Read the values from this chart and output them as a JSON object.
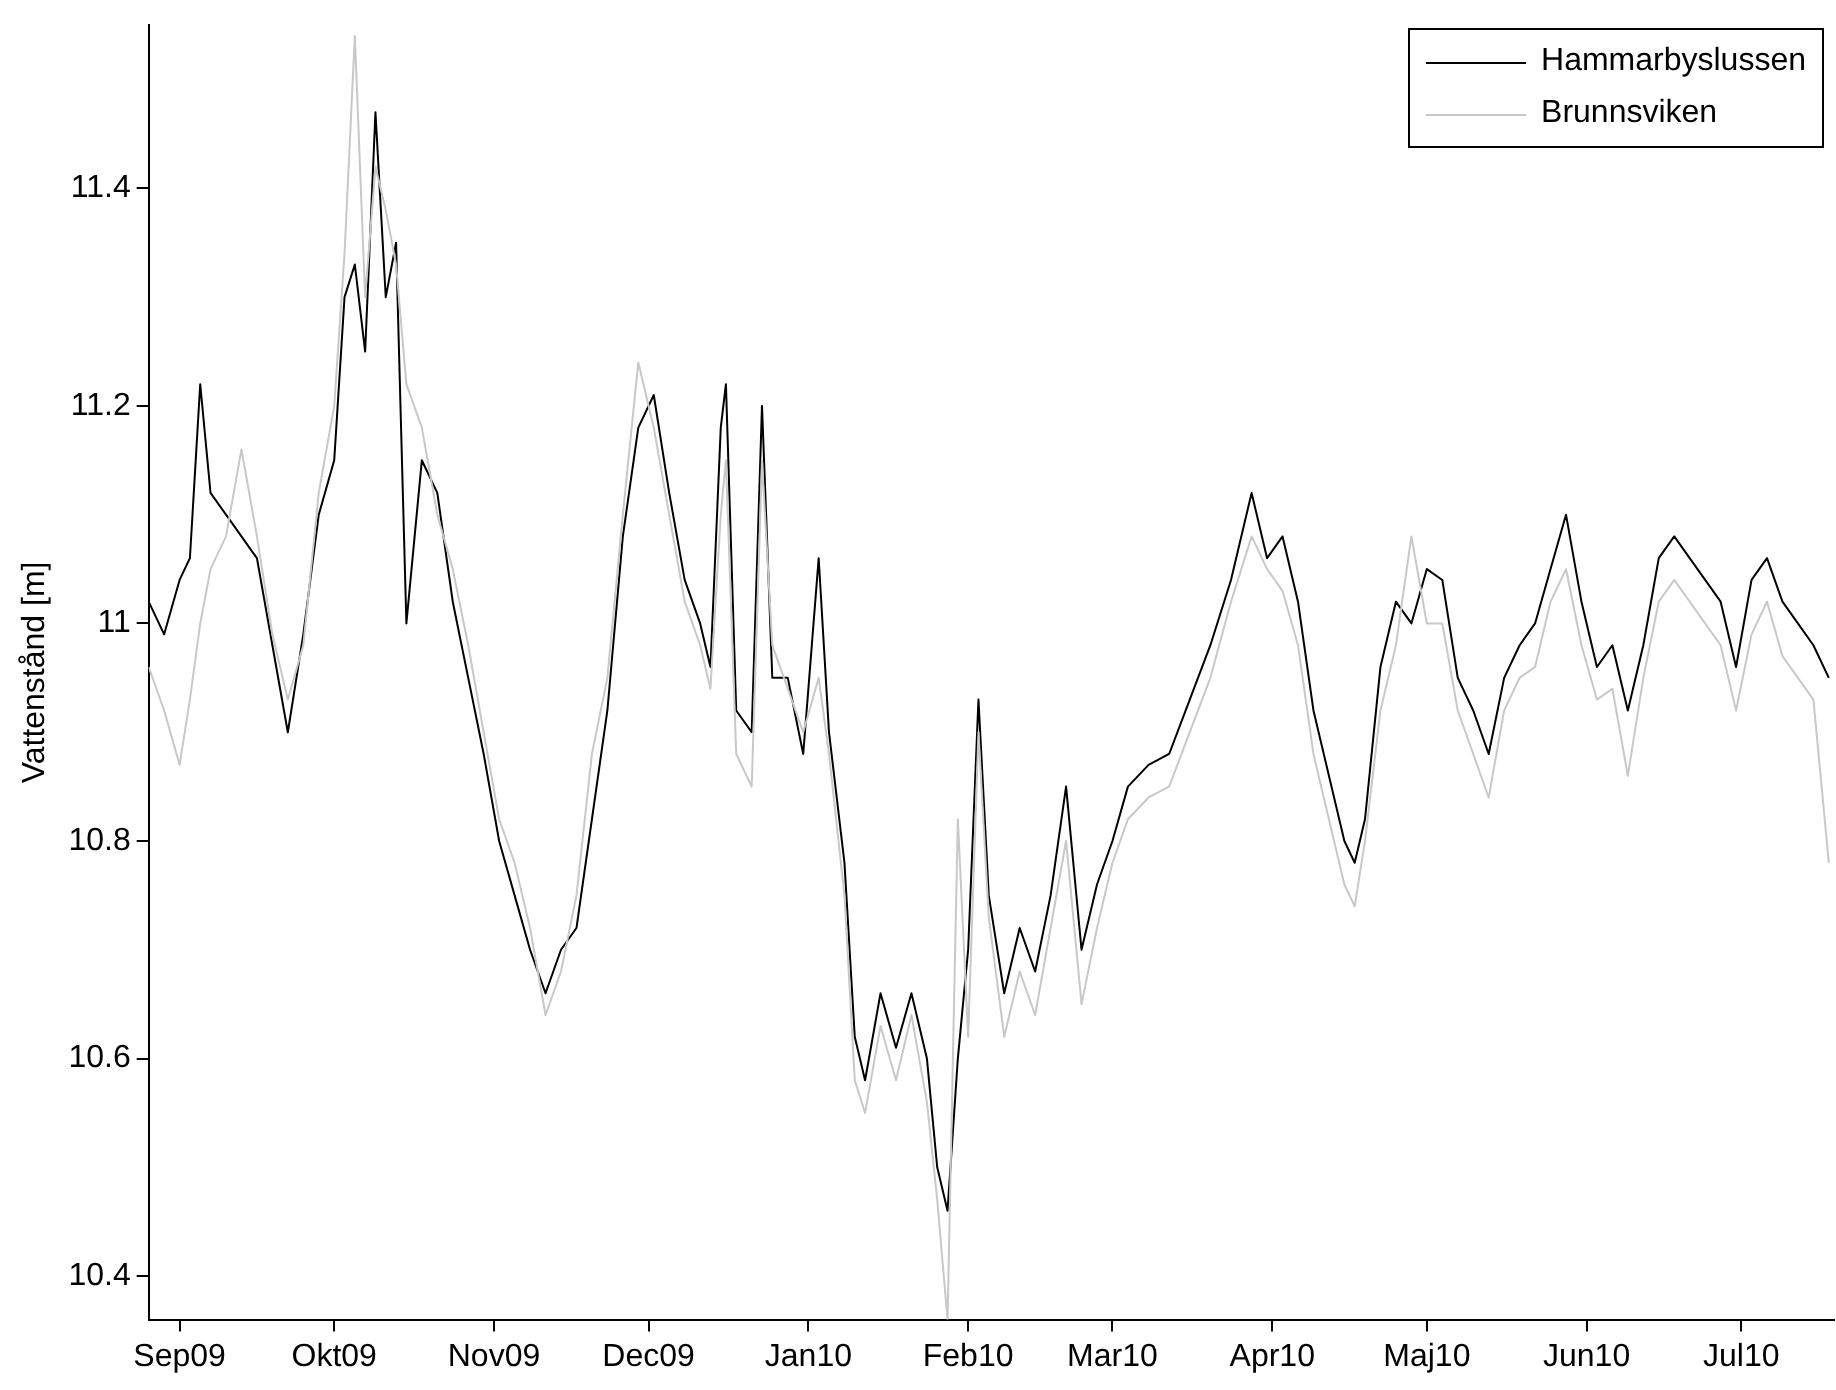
{
  "chart_data": {
    "type": "line",
    "ylabel": "Vattenstånd [m]",
    "xlim": [
      "2009-08-26",
      "2010-07-19"
    ],
    "xticks": [
      {
        "value": "2009-09-01",
        "label": "Sep09"
      },
      {
        "value": "2009-10-01",
        "label": "Okt09"
      },
      {
        "value": "2009-11-01",
        "label": "Nov09"
      },
      {
        "value": "2009-12-01",
        "label": "Dec09"
      },
      {
        "value": "2010-01-01",
        "label": "Jan10"
      },
      {
        "value": "2010-02-01",
        "label": "Feb10"
      },
      {
        "value": "2010-03-01",
        "label": "Mar10"
      },
      {
        "value": "2010-04-01",
        "label": "Apr10"
      },
      {
        "value": "2010-05-01",
        "label": "Maj10"
      },
      {
        "value": "2010-06-01",
        "label": "Jun10"
      },
      {
        "value": "2010-07-01",
        "label": "Jul10"
      }
    ],
    "ylim": [
      10.36,
      11.55
    ],
    "yticks": [
      10.4,
      10.6,
      10.8,
      11,
      11.2,
      11.4
    ],
    "grid": false,
    "legend": "top right",
    "marker": "none",
    "line_style": "solid",
    "x": [
      "2009-08-26",
      "2009-08-29",
      "2009-09-01",
      "2009-09-03",
      "2009-09-05",
      "2009-09-07",
      "2009-09-10",
      "2009-09-13",
      "2009-09-16",
      "2009-09-19",
      "2009-09-22",
      "2009-09-25",
      "2009-09-28",
      "2009-10-01",
      "2009-10-03",
      "2009-10-05",
      "2009-10-07",
      "2009-10-09",
      "2009-10-11",
      "2009-10-13",
      "2009-10-15",
      "2009-10-18",
      "2009-10-21",
      "2009-10-24",
      "2009-10-27",
      "2009-10-30",
      "2009-11-02",
      "2009-11-05",
      "2009-11-08",
      "2009-11-11",
      "2009-11-14",
      "2009-11-17",
      "2009-11-20",
      "2009-11-23",
      "2009-11-26",
      "2009-11-29",
      "2009-12-02",
      "2009-12-05",
      "2009-12-08",
      "2009-12-11",
      "2009-12-13",
      "2009-12-15",
      "2009-12-16",
      "2009-12-18",
      "2009-12-21",
      "2009-12-23",
      "2009-12-25",
      "2009-12-28",
      "2009-12-31",
      "2010-01-03",
      "2010-01-05",
      "2010-01-08",
      "2010-01-10",
      "2010-01-12",
      "2010-01-15",
      "2010-01-18",
      "2010-01-21",
      "2010-01-24",
      "2010-01-26",
      "2010-01-28",
      "2010-01-30",
      "2010-02-01",
      "2010-02-03",
      "2010-02-05",
      "2010-02-08",
      "2010-02-11",
      "2010-02-14",
      "2010-02-17",
      "2010-02-20",
      "2010-02-23",
      "2010-02-26",
      "2010-03-01",
      "2010-03-04",
      "2010-03-08",
      "2010-03-12",
      "2010-03-16",
      "2010-03-20",
      "2010-03-24",
      "2010-03-28",
      "2010-03-31",
      "2010-04-03",
      "2010-04-06",
      "2010-04-09",
      "2010-04-12",
      "2010-04-15",
      "2010-04-17",
      "2010-04-19",
      "2010-04-22",
      "2010-04-25",
      "2010-04-28",
      "2010-05-01",
      "2010-05-04",
      "2010-05-07",
      "2010-05-10",
      "2010-05-13",
      "2010-05-16",
      "2010-05-19",
      "2010-05-22",
      "2010-05-25",
      "2010-05-28",
      "2010-05-31",
      "2010-06-03",
      "2010-06-06",
      "2010-06-09",
      "2010-06-12",
      "2010-06-15",
      "2010-06-18",
      "2010-06-21",
      "2010-06-24",
      "2010-06-27",
      "2010-06-30",
      "2010-07-03",
      "2010-07-06",
      "2010-07-09",
      "2010-07-12",
      "2010-07-15",
      "2010-07-18"
    ],
    "series": [
      {
        "name": "Hammarbyslussen",
        "color": "#000000",
        "values": [
          11.02,
          10.99,
          11.04,
          11.06,
          11.22,
          11.12,
          11.1,
          11.08,
          11.06,
          10.98,
          10.9,
          10.99,
          11.1,
          11.15,
          11.3,
          11.33,
          11.25,
          11.47,
          11.3,
          11.35,
          11.0,
          11.15,
          11.12,
          11.02,
          10.95,
          10.88,
          10.8,
          10.75,
          10.7,
          10.66,
          10.7,
          10.72,
          10.82,
          10.92,
          11.08,
          11.18,
          11.21,
          11.12,
          11.04,
          11.0,
          10.96,
          11.18,
          11.22,
          10.92,
          10.9,
          11.2,
          10.95,
          10.95,
          10.88,
          11.06,
          10.9,
          10.78,
          10.62,
          10.58,
          10.66,
          10.61,
          10.66,
          10.6,
          10.5,
          10.46,
          10.6,
          10.7,
          10.93,
          10.75,
          10.66,
          10.72,
          10.68,
          10.75,
          10.85,
          10.7,
          10.76,
          10.8,
          10.85,
          10.87,
          10.88,
          10.93,
          10.98,
          11.04,
          11.12,
          11.06,
          11.08,
          11.02,
          10.92,
          10.86,
          10.8,
          10.78,
          10.82,
          10.96,
          11.02,
          11.0,
          11.05,
          11.04,
          10.95,
          10.92,
          10.88,
          10.95,
          10.98,
          11.0,
          11.05,
          11.1,
          11.02,
          10.96,
          10.98,
          10.92,
          10.98,
          11.06,
          11.08,
          11.06,
          11.04,
          11.02,
          10.96,
          11.04,
          11.06,
          11.02,
          11.0,
          10.98,
          10.95
        ]
      },
      {
        "name": "Brunnsviken",
        "color": "#c8c8c8",
        "values": [
          10.96,
          10.92,
          10.87,
          10.93,
          11.0,
          11.05,
          11.08,
          11.16,
          11.08,
          10.99,
          10.93,
          10.98,
          11.12,
          11.2,
          11.34,
          11.54,
          11.3,
          11.42,
          11.38,
          11.33,
          11.22,
          11.18,
          11.1,
          11.05,
          10.98,
          10.9,
          10.82,
          10.78,
          10.72,
          10.64,
          10.68,
          10.75,
          10.88,
          10.95,
          11.1,
          11.24,
          11.18,
          11.1,
          11.02,
          10.98,
          10.94,
          11.1,
          11.15,
          10.88,
          10.85,
          11.15,
          10.98,
          10.94,
          10.9,
          10.95,
          10.88,
          10.75,
          10.58,
          10.55,
          10.63,
          10.58,
          10.64,
          10.56,
          10.47,
          10.36,
          10.82,
          10.62,
          10.9,
          10.73,
          10.62,
          10.68,
          10.64,
          10.72,
          10.8,
          10.65,
          10.72,
          10.78,
          10.82,
          10.84,
          10.85,
          10.9,
          10.95,
          11.02,
          11.08,
          11.05,
          11.03,
          10.98,
          10.88,
          10.82,
          10.76,
          10.74,
          10.8,
          10.92,
          10.98,
          11.08,
          11.0,
          11.0,
          10.92,
          10.88,
          10.84,
          10.92,
          10.95,
          10.96,
          11.02,
          11.05,
          10.98,
          10.93,
          10.94,
          10.86,
          10.95,
          11.02,
          11.04,
          11.02,
          11.0,
          10.98,
          10.92,
          10.99,
          11.02,
          10.97,
          10.95,
          10.93,
          10.78
        ]
      }
    ]
  }
}
